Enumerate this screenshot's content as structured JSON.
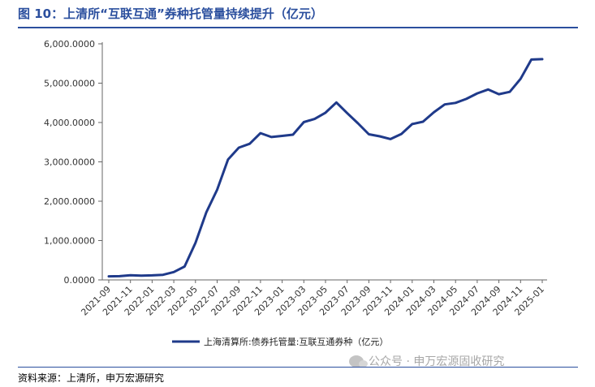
{
  "figure": {
    "title": "图 10：上清所“互联互通”券种托管量持续提升（亿元）",
    "source": "资料来源：上清所，申万宏源研究",
    "watermark": "公众号 · 申万宏源固收研究",
    "watermark_icon": "wechat-icon"
  },
  "chart_data": {
    "type": "line",
    "title": "",
    "xlabel": "",
    "ylabel": "",
    "ylim": [
      0,
      6000
    ],
    "yticks": [
      "0.0000",
      "1,000.0000",
      "2,000.0000",
      "3,000.0000",
      "4,000.0000",
      "5,000.0000",
      "6,000.0000"
    ],
    "ytick_values": [
      0,
      1000,
      2000,
      3000,
      4000,
      5000,
      6000
    ],
    "x_tick_labels": [
      "2021-09",
      "2021-11",
      "2022-01",
      "2022-03",
      "2022-05",
      "2022-07",
      "2022-09",
      "2022-11",
      "2023-01",
      "2023-03",
      "2023-05",
      "2023-07",
      "2023-09",
      "2023-11",
      "2024-01",
      "2024-03",
      "2024-05",
      "2024-07",
      "2024-09",
      "2024-11",
      "2025-01"
    ],
    "grid": false,
    "legend": "bottom-center",
    "series": [
      {
        "name": "上海清算所:债券托管量:互联互通券种（亿元）",
        "color": "#1f3a8a",
        "x": [
          "2021-09",
          "2021-10",
          "2021-11",
          "2021-12",
          "2022-01",
          "2022-02",
          "2022-03",
          "2022-04",
          "2022-05",
          "2022-06",
          "2022-07",
          "2022-08",
          "2022-09",
          "2022-10",
          "2022-11",
          "2022-12",
          "2023-01",
          "2023-02",
          "2023-03",
          "2023-04",
          "2023-05",
          "2023-06",
          "2023-07",
          "2023-08",
          "2023-09",
          "2023-10",
          "2023-11",
          "2023-12",
          "2024-01",
          "2024-02",
          "2024-03",
          "2024-04",
          "2024-05",
          "2024-06",
          "2024-07",
          "2024-08",
          "2024-09",
          "2024-10",
          "2024-11",
          "2024-12",
          "2025-01"
        ],
        "values": [
          90,
          95,
          120,
          110,
          115,
          130,
          200,
          340,
          940,
          1720,
          2290,
          3060,
          3360,
          3460,
          3730,
          3630,
          3660,
          3690,
          4010,
          4090,
          4250,
          4510,
          4240,
          3980,
          3700,
          3650,
          3580,
          3710,
          3960,
          4020,
          4260,
          4460,
          4500,
          4600,
          4740,
          4840,
          4720,
          4780,
          5110,
          5600,
          5610
        ]
      }
    ]
  }
}
